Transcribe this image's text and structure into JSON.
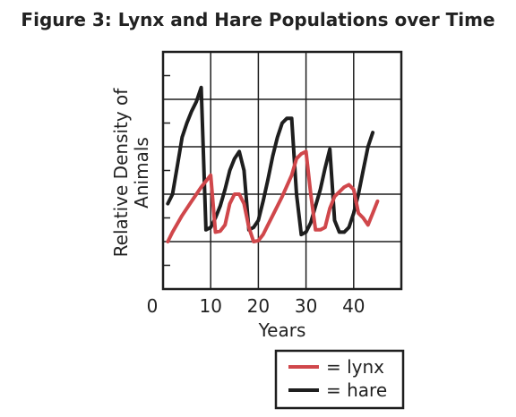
{
  "chart_data": {
    "type": "line",
    "title": "Figure 3: Lynx and Hare Populations over Time",
    "xlabel": "Years",
    "ylabel_line1": "Relative Density of",
    "ylabel_line2": "Animals",
    "xlim": [
      0,
      50
    ],
    "ylim": [
      0,
      5
    ],
    "x_ticks": [
      "0",
      "10",
      "20",
      "30",
      "40"
    ],
    "x_tick_values": [
      0,
      10,
      20,
      30,
      40
    ],
    "grid": true,
    "legend": "bottom-right",
    "series": [
      {
        "name": "= lynx",
        "color": "#d0474b",
        "points": [
          [
            1,
            1.0
          ],
          [
            2,
            1.2
          ],
          [
            4,
            1.55
          ],
          [
            6,
            1.85
          ],
          [
            8,
            2.15
          ],
          [
            10,
            2.4
          ],
          [
            11,
            1.2
          ],
          [
            12,
            1.22
          ],
          [
            13,
            1.35
          ],
          [
            14,
            1.8
          ],
          [
            15,
            2.0
          ],
          [
            16,
            2.0
          ],
          [
            17,
            1.8
          ],
          [
            18,
            1.3
          ],
          [
            19,
            1.0
          ],
          [
            20,
            1.02
          ],
          [
            21,
            1.15
          ],
          [
            23,
            1.55
          ],
          [
            25,
            1.95
          ],
          [
            27,
            2.4
          ],
          [
            28,
            2.75
          ],
          [
            29,
            2.85
          ],
          [
            30,
            2.9
          ],
          [
            31,
            2.0
          ],
          [
            32,
            1.25
          ],
          [
            33,
            1.25
          ],
          [
            34,
            1.3
          ],
          [
            35,
            1.7
          ],
          [
            36,
            1.95
          ],
          [
            37,
            2.05
          ],
          [
            38,
            2.15
          ],
          [
            39,
            2.2
          ],
          [
            40,
            2.1
          ],
          [
            41,
            1.6
          ],
          [
            42,
            1.5
          ],
          [
            43,
            1.35
          ],
          [
            44,
            1.6
          ],
          [
            45,
            1.85
          ]
        ]
      },
      {
        "name": "= hare",
        "color": "#1e1e1e",
        "points": [
          [
            1,
            1.8
          ],
          [
            2,
            2.0
          ],
          [
            3,
            2.6
          ],
          [
            4,
            3.2
          ],
          [
            5,
            3.5
          ],
          [
            6,
            3.75
          ],
          [
            7,
            3.95
          ],
          [
            8,
            4.25
          ],
          [
            9,
            1.25
          ],
          [
            10,
            1.3
          ],
          [
            11,
            1.5
          ],
          [
            12,
            1.75
          ],
          [
            13,
            2.1
          ],
          [
            14,
            2.5
          ],
          [
            15,
            2.75
          ],
          [
            16,
            2.9
          ],
          [
            17,
            2.5
          ],
          [
            18,
            1.25
          ],
          [
            19,
            1.3
          ],
          [
            20,
            1.45
          ],
          [
            21,
            1.85
          ],
          [
            22,
            2.3
          ],
          [
            23,
            2.8
          ],
          [
            24,
            3.2
          ],
          [
            25,
            3.5
          ],
          [
            26,
            3.6
          ],
          [
            27,
            3.6
          ],
          [
            28,
            2.0
          ],
          [
            29,
            1.15
          ],
          [
            30,
            1.2
          ],
          [
            31,
            1.4
          ],
          [
            32,
            1.75
          ],
          [
            33,
            2.1
          ],
          [
            34,
            2.55
          ],
          [
            35,
            2.95
          ],
          [
            36,
            1.45
          ],
          [
            37,
            1.2
          ],
          [
            38,
            1.2
          ],
          [
            39,
            1.3
          ],
          [
            40,
            1.6
          ],
          [
            41,
            2.0
          ],
          [
            42,
            2.5
          ],
          [
            43,
            3.0
          ],
          [
            44,
            3.3
          ]
        ]
      }
    ]
  }
}
